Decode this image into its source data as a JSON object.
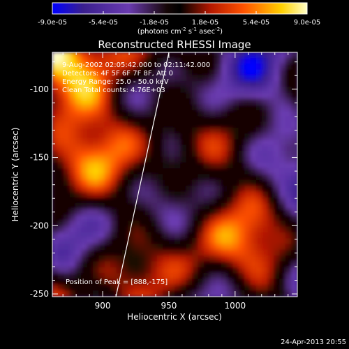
{
  "chart_data": {
    "type": "heatmap",
    "title": "Reconstructed RHESSI Image",
    "xlabel": "Heliocentric X (arcsec)",
    "ylabel": "Heliocentric Y (arcsec)",
    "xlim": [
      862,
      1047
    ],
    "ylim": [
      -252,
      -73
    ],
    "x_ticks": [
      900,
      950,
      1000
    ],
    "y_ticks": [
      -100,
      -150,
      -200,
      -250
    ],
    "colorbar": {
      "ticks": [
        "-9.0e-05",
        "-5.4e-05",
        "-1.8e-05",
        "1.8e-05",
        "5.4e-05",
        "9.0e-05"
      ],
      "range": [
        -9e-05,
        9e-05
      ],
      "unit_base": "(photons cm",
      "unit_exp1": "-2",
      "unit_mid": " s",
      "unit_exp2": "-1",
      "unit_mid2": " asec",
      "unit_exp3": "-2",
      "unit_end": ")"
    },
    "annotations": {
      "time_range": "9-Aug-2002 02:05:42.000 to 02:11:42.000",
      "detectors": "Detectors: 4F 5F 6F 7F 8F, Att 0",
      "energy": "Energy Range: 25.0 - 50.0 keV",
      "clean": "Clean    Total counts: 4.76E+03",
      "peak": "Position of Peak = [888,-175]"
    },
    "limb_line": {
      "x": [
        950,
        910
      ],
      "y": [
        -73,
        -252
      ]
    },
    "grid": false,
    "footer_date": "24-Apr-2013 20:55",
    "colors": {
      "min": "#0000ff",
      "low": "#3a1f8e",
      "mid": "#6a3bb0",
      "zero": "#150606",
      "pos1": "#b41800",
      "pos2": "#ff5200",
      "pos3": "#ffd000",
      "max": "#ffffc8"
    }
  }
}
